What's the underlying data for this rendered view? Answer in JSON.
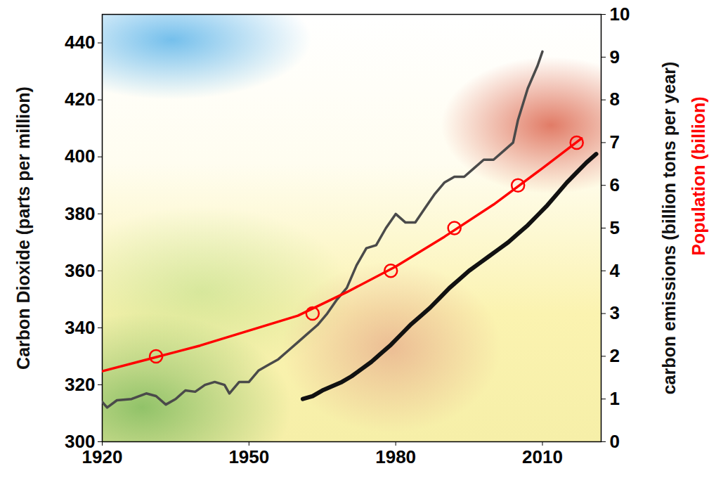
{
  "chart_data": {
    "type": "line",
    "ylabel": "Carbon Dioxide (parts per million)",
    "y2label": [
      {
        "text": "carbon emissions (billion tons per year)",
        "color": "#111111"
      },
      {
        "text": "Population (billion)",
        "color": "#ff0000"
      }
    ],
    "xlim": [
      1920,
      2022
    ],
    "xticks": [
      1920,
      1950,
      1980,
      2010
    ],
    "ylim": [
      300,
      450
    ],
    "yticks": [
      300,
      320,
      340,
      360,
      380,
      400,
      420,
      440
    ],
    "y2lim": [
      0,
      10
    ],
    "y2ticks": [
      0,
      1,
      2,
      3,
      4,
      5,
      6,
      7,
      8,
      9,
      10
    ],
    "grid": false,
    "series": [
      {
        "color": "#111111",
        "axis": "y",
        "type": "line",
        "line_style": "solid",
        "x": [
          1961,
          1963,
          1965,
          1967,
          1969,
          1971,
          1973,
          1975,
          1977,
          1979,
          1981,
          1983,
          1985,
          1987,
          1989,
          1991,
          1993,
          1995,
          1997,
          1999,
          2001,
          2003,
          2005,
          2007,
          2009,
          2011,
          2013,
          2015,
          2017,
          2019,
          2021
        ],
        "values": [
          315,
          316,
          318,
          319.5,
          321,
          323,
          325.5,
          328,
          331,
          334,
          337.5,
          341,
          344,
          347,
          350.5,
          354,
          357,
          360,
          362.5,
          365,
          367.5,
          370,
          373,
          376,
          379.5,
          383,
          387,
          391,
          394.5,
          398,
          401
        ]
      },
      {
        "color": "#4a4a4a",
        "axis": "y2",
        "type": "line",
        "line_style": "solid",
        "x": [
          1920,
          1921,
          1923,
          1926,
          1929,
          1931,
          1933,
          1935,
          1937,
          1939,
          1941,
          1943,
          1945,
          1946,
          1948,
          1950,
          1952,
          1954,
          1956,
          1958,
          1960,
          1962,
          1964,
          1966,
          1968,
          1970,
          1972,
          1974,
          1976,
          1978,
          1980,
          1982,
          1984,
          1986,
          1988,
          1990,
          1992,
          1994,
          1996,
          1998,
          2000,
          2002,
          2004,
          2005,
          2007,
          2009,
          2010
        ],
        "values": [
          0.93,
          0.8,
          0.97,
          1.0,
          1.13,
          1.07,
          0.87,
          1.0,
          1.2,
          1.17,
          1.33,
          1.4,
          1.33,
          1.13,
          1.4,
          1.4,
          1.67,
          1.8,
          1.93,
          2.13,
          2.33,
          2.53,
          2.73,
          3.0,
          3.33,
          3.6,
          4.13,
          4.53,
          4.6,
          5.0,
          5.33,
          5.13,
          5.13,
          5.47,
          5.8,
          6.07,
          6.2,
          6.2,
          6.4,
          6.6,
          6.6,
          6.8,
          7.0,
          7.53,
          8.27,
          8.8,
          9.13
        ]
      },
      {
        "color": "#ff0000",
        "axis": "y2",
        "type": "line",
        "line_style": "solid",
        "x": [
          1920,
          1930,
          1940,
          1950,
          1960,
          1970,
          1980,
          1990,
          2000,
          2010,
          2018
        ],
        "values": [
          1.65,
          1.95,
          2.25,
          2.6,
          2.95,
          3.5,
          4.1,
          4.8,
          5.55,
          6.4,
          7.1
        ]
      },
      {
        "color": "#ff0000",
        "axis": "y2",
        "type": "scatter",
        "marker": "circle",
        "x": [
          1931,
          1963,
          1979,
          1992,
          2005,
          2017
        ],
        "values": [
          2,
          3,
          4,
          5,
          6,
          7
        ]
      }
    ]
  }
}
